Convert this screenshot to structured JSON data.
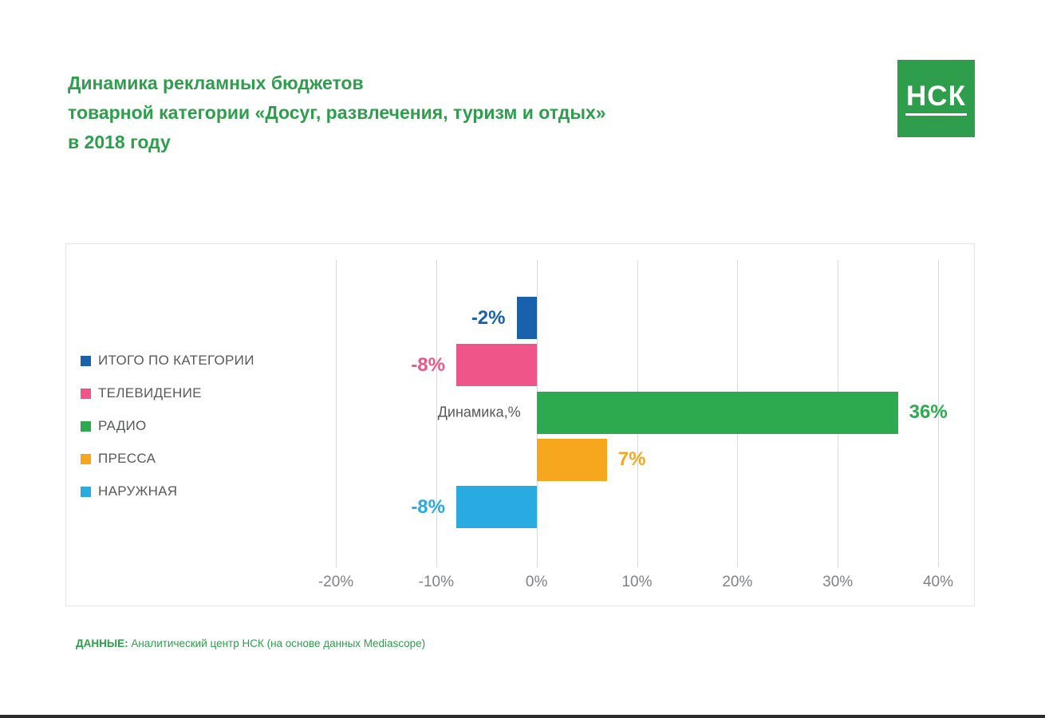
{
  "header": {
    "title_line1": "Динамика рекламных бюджетов",
    "title_line2": "товарной категории «Досуг, развлечения, туризм и отдых»",
    "title_line3": "в 2018 году",
    "logo_text": "НСК"
  },
  "footer": {
    "source_label": "ДАННЫЕ:",
    "source_text": " Аналитический центр НСК (на основе данных Mediascope)"
  },
  "theme": {
    "title_color": "#2e9e4c",
    "logo_background": "#2e9e4c",
    "legend_text_color": "#58595b",
    "tick_color": "#808285",
    "gridline_color": "#d8d9da",
    "panel_border_color": "#e4e5e6"
  },
  "chart_data": {
    "type": "bar",
    "orientation": "horizontal",
    "title": "Динамика рекламных бюджетов товарной категории «Досуг, развлечения, туризм и отдых» в 2018 году",
    "categories": [
      "ИТОГО ПО КАТЕГОРИИ",
      "ТЕЛЕВИДЕНИЕ",
      "РАДИО",
      "ПРЕССА",
      "НАРУЖНАЯ"
    ],
    "values": [
      -2,
      -8,
      36,
      7,
      -8
    ],
    "labels": [
      "-2%",
      "-8%",
      "36%",
      "7%",
      "-8%"
    ],
    "colors": [
      "#1961ac",
      "#f0558a",
      "#2daa4f",
      "#f6a71e",
      "#29abe2"
    ],
    "axis_label": "Динамика,%",
    "x_ticks": [
      "-20%",
      "-10%",
      "0%",
      "10%",
      "20%",
      "30%",
      "40%"
    ],
    "x_tick_values": [
      -20,
      -10,
      0,
      10,
      20,
      30,
      40
    ],
    "xlim": [
      -20,
      40
    ],
    "grid": true,
    "legend_position": "left"
  }
}
